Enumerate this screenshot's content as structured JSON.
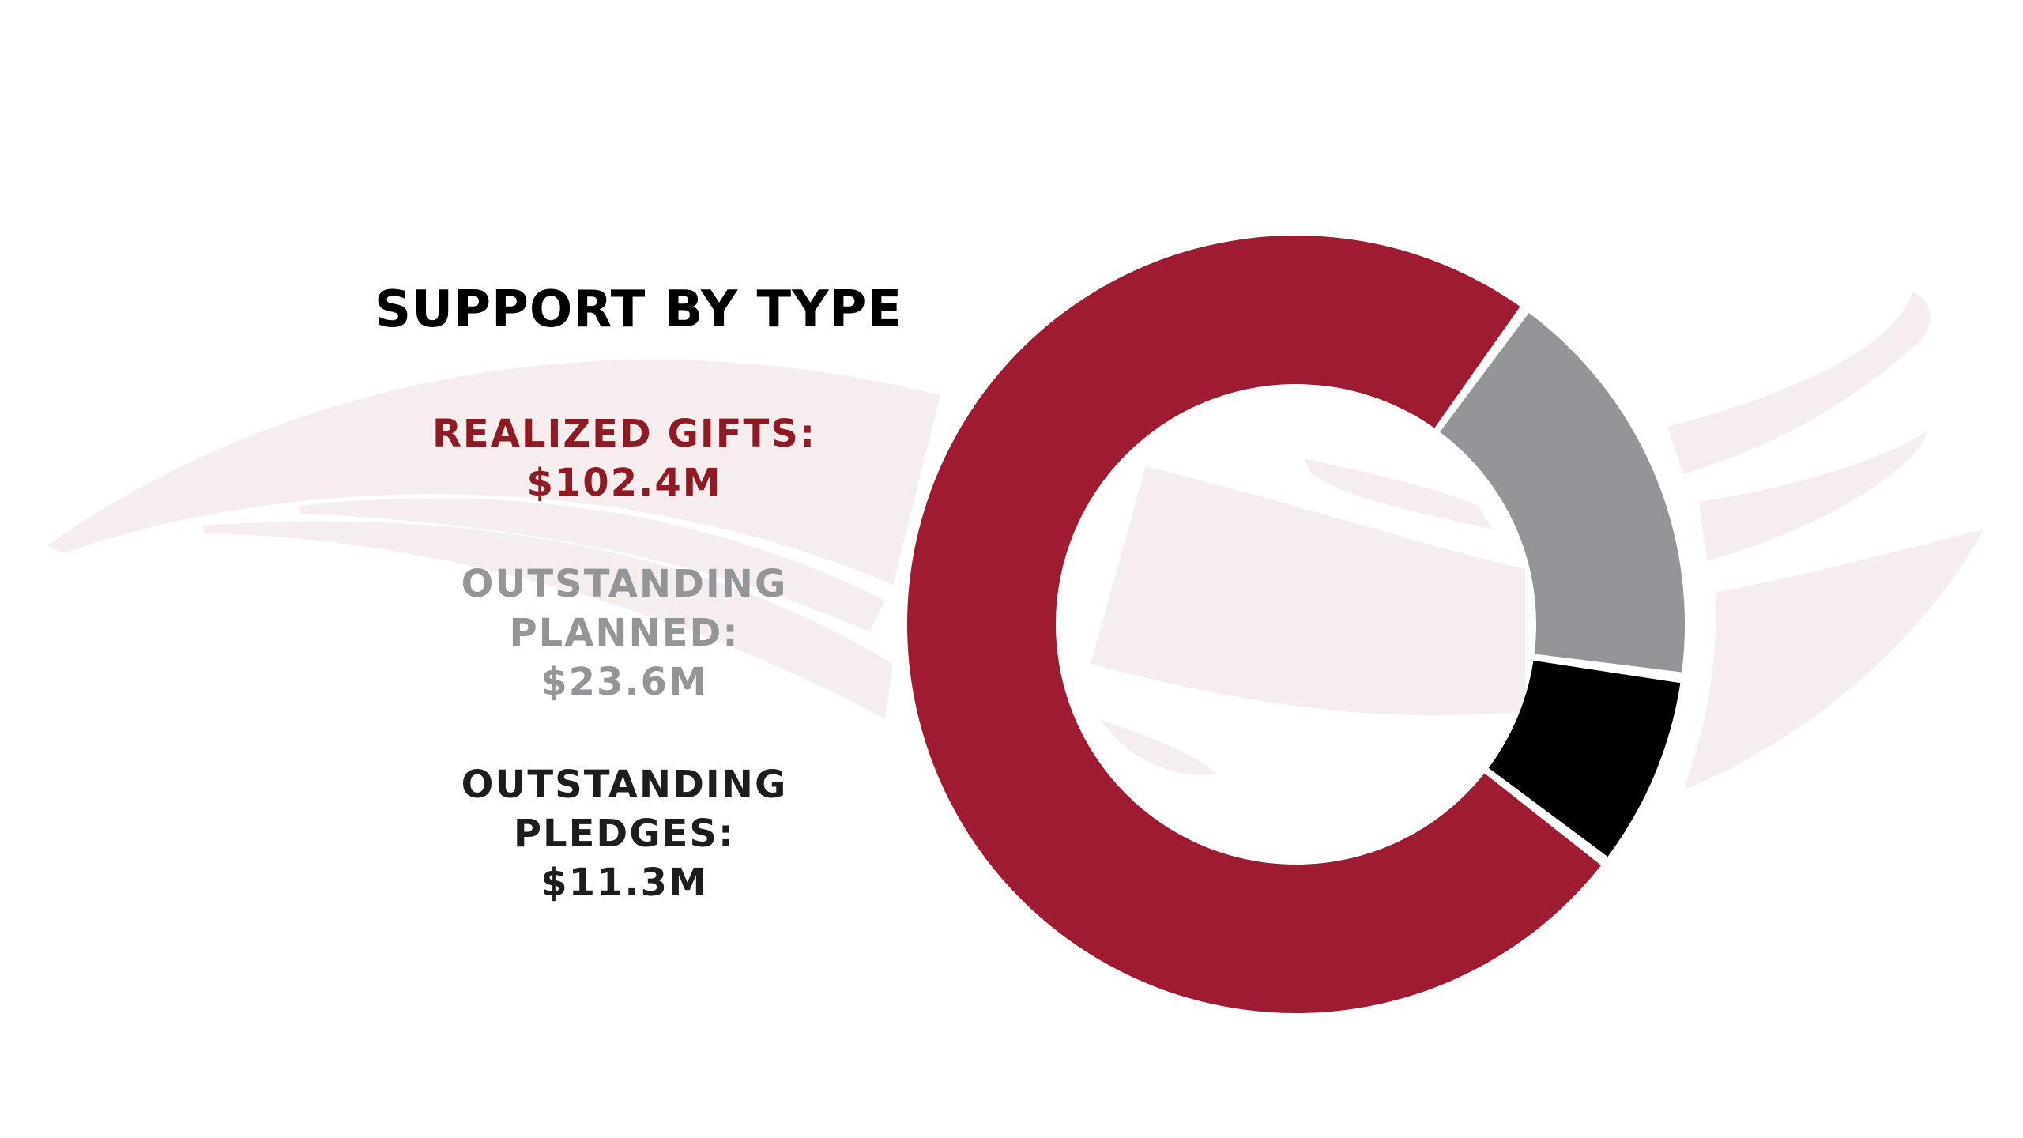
{
  "colors": {
    "realized": "#9e1b32",
    "planned": "#939598",
    "pledges": "#000000",
    "swoosh": "#f6eeee",
    "label_red": "#8f1a24",
    "label_gray": "#939598",
    "label_dark": "#1d1d1d"
  },
  "background": {
    "decoration": "wing-swoosh-watermark"
  },
  "title": "SUPPORT BY TYPE",
  "legend": [
    {
      "lines": [
        "REALIZED GIFTS:",
        "$102.4M"
      ],
      "color_key": "label_red"
    },
    {
      "lines": [
        "OUTSTANDING",
        "PLANNED:",
        "$23.6M"
      ],
      "color_key": "label_gray"
    },
    {
      "lines": [
        "OUTSTANDING",
        "PLEDGES:",
        "$11.3M"
      ],
      "color_key": "label_dark"
    }
  ],
  "chart_data": {
    "type": "pie",
    "variant": "donut",
    "title": "SUPPORT BY TYPE",
    "units": "$M",
    "categories": [
      "REALIZED GIFTS",
      "OUTSTANDING PLANNED",
      "OUTSTANDING PLEDGES"
    ],
    "values": [
      102.4,
      23.6,
      11.3
    ],
    "colors": [
      "#9e1b32",
      "#939598",
      "#000000"
    ],
    "value_labels": [
      "$102.4M",
      "$23.6M",
      "$11.3M"
    ],
    "start": "top, clockwise from realized gifts end",
    "legend_position": "left"
  }
}
